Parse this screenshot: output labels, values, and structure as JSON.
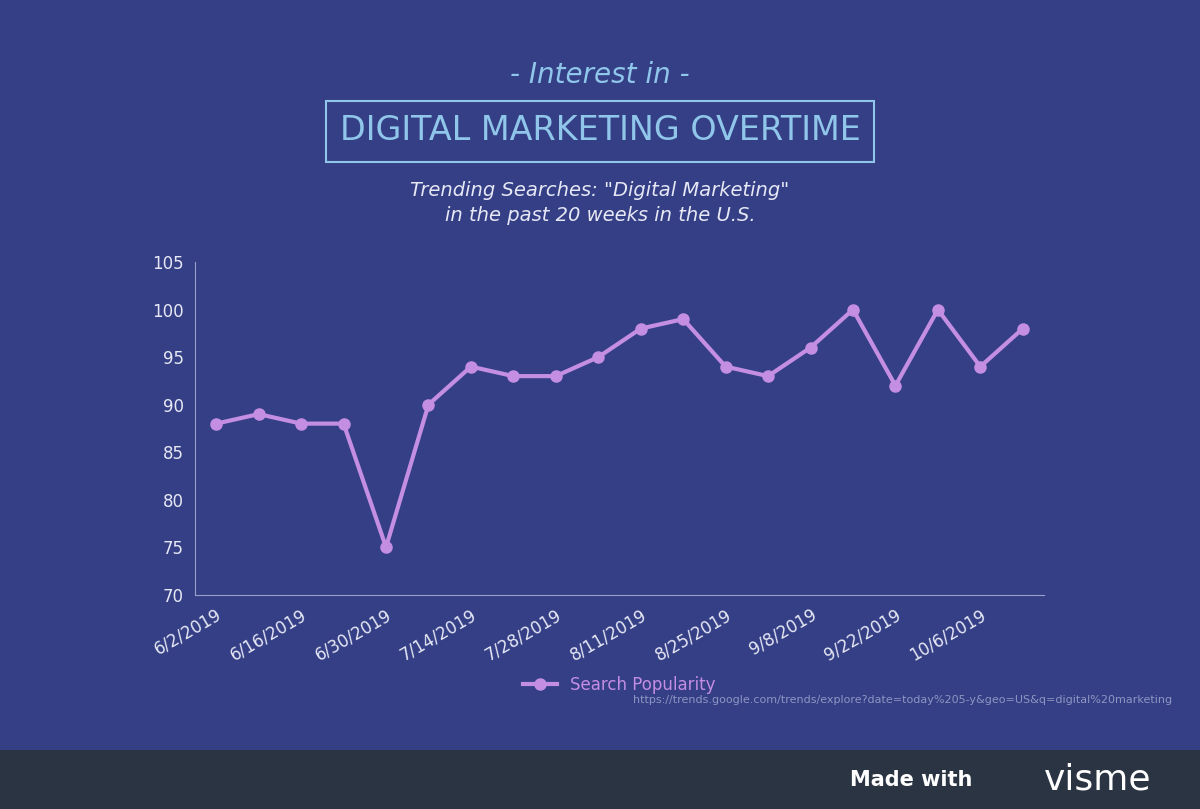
{
  "chart_data": {
    "type": "line",
    "title": "DIGITAL MARKETING OVERTIME",
    "subtitle": "Trending Searches: \"Digital Marketing\"\nin the past 20 weeks in the U.S.",
    "annotations": [
      "- Interest in -",
      "https://trends.google.com/trends/explore?date=today%205-y&geo=US&q=digital%20marketing",
      "Made with",
      "visme"
    ],
    "categories": [
      "6/2/2019",
      null,
      "6/16/2019",
      null,
      "6/30/2019",
      null,
      "7/14/2019",
      null,
      "7/28/2019",
      null,
      "8/11/2019",
      null,
      "8/25/2019",
      null,
      "9/8/2019",
      null,
      "9/22/2019",
      null,
      "10/6/2019",
      null
    ],
    "series": [
      {
        "name": "Search Popularity",
        "color": "#c48ee3",
        "marker": "o",
        "line_style": "solid",
        "values": [
          88,
          89,
          88,
          88,
          75,
          90,
          94,
          93,
          93,
          95,
          98,
          99,
          94,
          93,
          96,
          100,
          92,
          100,
          94,
          98
        ]
      }
    ],
    "ylim": [
      70,
      105
    ],
    "yticks": [
      70,
      75,
      80,
      85,
      90,
      95,
      100,
      105
    ],
    "grid": false,
    "legend": "upper center"
  }
}
